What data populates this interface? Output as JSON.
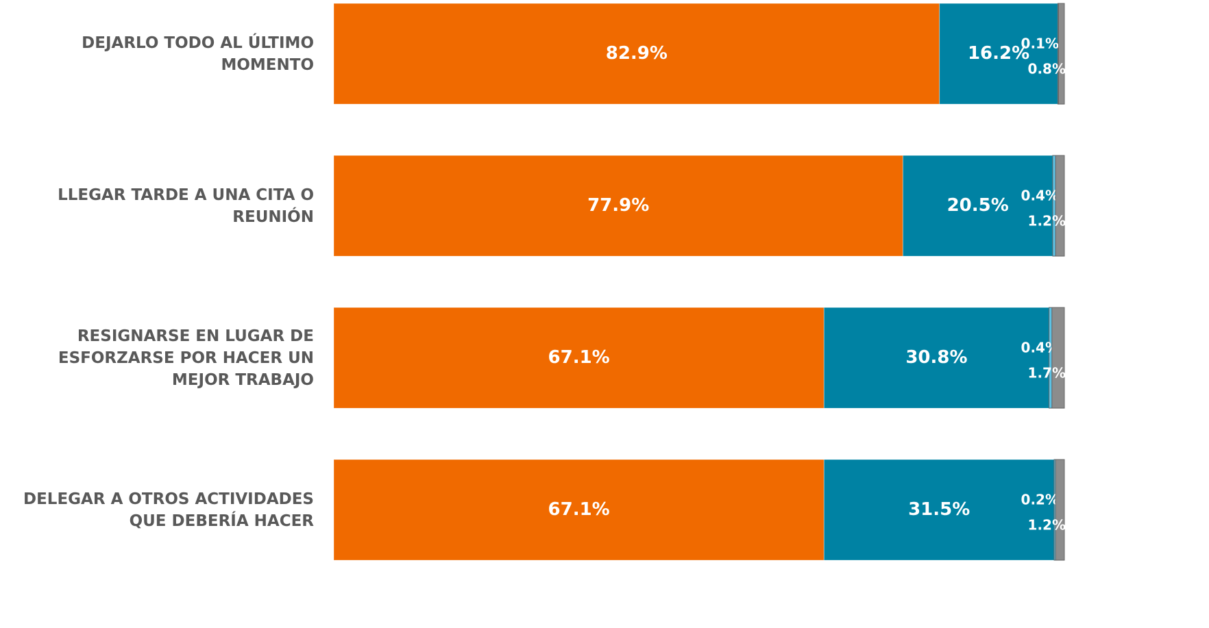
{
  "chart_data": {
    "type": "stacked-bar-horizontal",
    "categories": [
      "DEJARLO TODO AL ÚLTIMO MOMENTO",
      "LLEGAR TARDE A UNA CITA O REUNIÓN",
      "RESIGNARSE EN LUGAR DE ESFORZARSE POR HACER UN MEJOR TRABAJO",
      "DELEGAR A OTROS ACTIVIDADES QUE DEBERÍA HACER"
    ],
    "series": [
      {
        "color": "#f06a00",
        "values": [
          82.9,
          77.9,
          67.1,
          67.1
        ],
        "value_labels": [
          "82.9%",
          "77.9%",
          "67.1%",
          "67.1%"
        ]
      },
      {
        "color": "#0082a3",
        "values": [
          16.2,
          20.5,
          30.8,
          31.5
        ],
        "value_labels": [
          "16.2%",
          "20.5%",
          "30.8%",
          "31.5%"
        ]
      },
      {
        "color": "#5cc3e6",
        "values": [
          0.1,
          0.4,
          0.4,
          0.2
        ],
        "value_labels": [
          "0.1%",
          "0.4%",
          "0.4%",
          "0.2%"
        ]
      },
      {
        "color": "#8c8c8c",
        "values": [
          0.8,
          1.2,
          1.7,
          1.2
        ],
        "value_labels": [
          "0.8%",
          "1.2%",
          "1.7%",
          "1.2%"
        ]
      }
    ],
    "xlim": [
      0,
      100
    ]
  }
}
